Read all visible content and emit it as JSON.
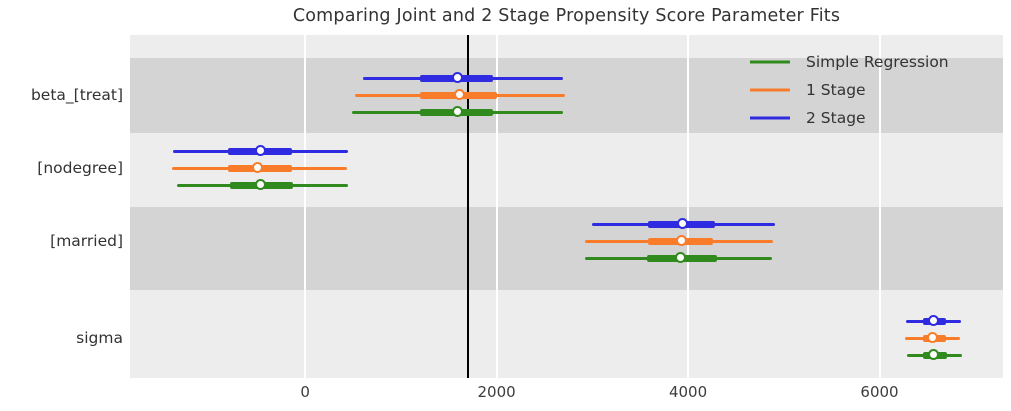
{
  "chart_data": {
    "type": "forest",
    "title": "Comparing Joint and 2 Stage Propensity Score Parameter Fits",
    "xlabel": "",
    "ylabel": "",
    "xlim": [
      -1830,
      7290
    ],
    "x_ticks": [
      0,
      2000,
      4000,
      6000
    ],
    "x_tick_labels": [
      "0",
      "2000",
      "4000",
      "6000"
    ],
    "reference_line_x": 1700,
    "reference_line_color": "#000000",
    "grid": "vertical white gridlines on gray background",
    "band_colors": {
      "light": "#ededed",
      "dark": "#d4d4d4"
    },
    "legend": {
      "position": "upper right",
      "entries": [
        {
          "label": "Simple Regression",
          "color": "#318a1d"
        },
        {
          "label": "1 Stage",
          "color": "#f97c2b"
        },
        {
          "label": "2 Stage",
          "color": "#2f2be0"
        }
      ]
    },
    "colors": {
      "2 Stage": "#2f2be0",
      "1 Stage": "#f97c2b",
      "Simple Regression": "#318a1d"
    },
    "series_order_top_to_bottom": [
      "2 Stage",
      "1 Stage",
      "Simple Regression"
    ],
    "parameters": [
      {
        "name": "beta_[treat]",
        "intervals": [
          {
            "series": "2 Stage",
            "median": 1600,
            "interval_inner": [
              1200,
              1960
            ],
            "interval_outer": [
              605,
              2695
            ]
          },
          {
            "series": "1 Stage",
            "median": 1620,
            "interval_inner": [
              1200,
              2005
            ],
            "interval_outer": [
              520,
              2715
            ]
          },
          {
            "series": "Simple Regression",
            "median": 1600,
            "interval_inner": [
              1200,
              1965
            ],
            "interval_outer": [
              490,
              2695
            ]
          }
        ]
      },
      {
        "name": "[nodegree]",
        "intervals": [
          {
            "series": "2 Stage",
            "median": -460,
            "interval_inner": [
              -805,
              -135
            ],
            "interval_outer": [
              -1380,
              450
            ]
          },
          {
            "series": "1 Stage",
            "median": -490,
            "interval_inner": [
              -805,
              -135
            ],
            "interval_outer": [
              -1390,
              440
            ]
          },
          {
            "series": "Simple Regression",
            "median": -460,
            "interval_inner": [
              -785,
              -125
            ],
            "interval_outer": [
              -1340,
              450
            ]
          }
        ]
      },
      {
        "name": "[married]",
        "intervals": [
          {
            "series": "2 Stage",
            "median": 3950,
            "interval_inner": [
              3580,
              4280
            ],
            "interval_outer": [
              3000,
              4910
            ]
          },
          {
            "series": "1 Stage",
            "median": 3940,
            "interval_inner": [
              3580,
              4260
            ],
            "interval_outer": [
              2925,
              4890
            ]
          },
          {
            "series": "Simple Regression",
            "median": 3930,
            "interval_inner": [
              3570,
              4305
            ],
            "interval_outer": [
              2925,
              4880
            ]
          }
        ]
      },
      {
        "name": "sigma",
        "intervals": [
          {
            "series": "2 Stage",
            "median": 6570,
            "interval_inner": [
              6455,
              6695
            ],
            "interval_outer": [
              6280,
              6850
            ]
          },
          {
            "series": "1 Stage",
            "median": 6560,
            "interval_inner": [
              6455,
              6695
            ],
            "interval_outer": [
              6265,
              6840
            ]
          },
          {
            "series": "Simple Regression",
            "median": 6570,
            "interval_inner": [
              6455,
              6705
            ],
            "interval_outer": [
              6290,
              6860
            ]
          }
        ]
      }
    ]
  }
}
